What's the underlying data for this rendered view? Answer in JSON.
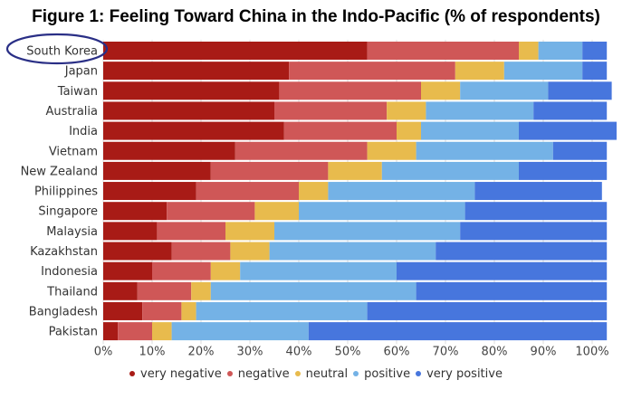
{
  "chart_data": {
    "type": "bar",
    "orientation": "horizontal",
    "stacked": true,
    "title": "Figure 1: Feeling Toward China in the Indo-Pacific (% of respondents)",
    "categories": [
      "South Korea",
      "Japan",
      "Taiwan",
      "Australia",
      "India",
      "Vietnam",
      "New Zealand",
      "Philippines",
      "Singapore",
      "Malaysia",
      "Kazakhstan",
      "Indonesia",
      "Thailand",
      "Bangladesh",
      "Pakistan"
    ],
    "highlighted_category": "South Korea",
    "series": [
      {
        "name": "very negative",
        "color": "#a81b16",
        "values": [
          54,
          38,
          36,
          35,
          37,
          27,
          22,
          19,
          13,
          11,
          14,
          10,
          7,
          8,
          3
        ]
      },
      {
        "name": "negative",
        "color": "#cf5757",
        "values": [
          31,
          34,
          29,
          23,
          23,
          27,
          24,
          21,
          18,
          14,
          12,
          12,
          11,
          8,
          7
        ]
      },
      {
        "name": "neutral",
        "color": "#e8bb4d",
        "values": [
          4,
          10,
          8,
          8,
          5,
          10,
          11,
          6,
          9,
          10,
          8,
          6,
          4,
          3,
          4
        ]
      },
      {
        "name": "positive",
        "color": "#74b2e6",
        "values": [
          9,
          16,
          18,
          22,
          20,
          28,
          28,
          30,
          34,
          38,
          34,
          32,
          42,
          35,
          28
        ]
      },
      {
        "name": "very positive",
        "color": "#4776dd",
        "values": [
          5,
          5,
          13,
          15,
          20,
          11,
          18,
          26,
          29,
          30,
          35,
          43,
          39,
          49,
          61
        ]
      }
    ],
    "xlim": [
      0,
      100
    ],
    "xticks": [
      "0%",
      "10%",
      "20%",
      "30%",
      "40%",
      "50%",
      "60%",
      "70%",
      "80%",
      "90%",
      "100%"
    ],
    "xlabel": "",
    "ylabel": "",
    "grid": true,
    "legend_position": "bottom"
  }
}
